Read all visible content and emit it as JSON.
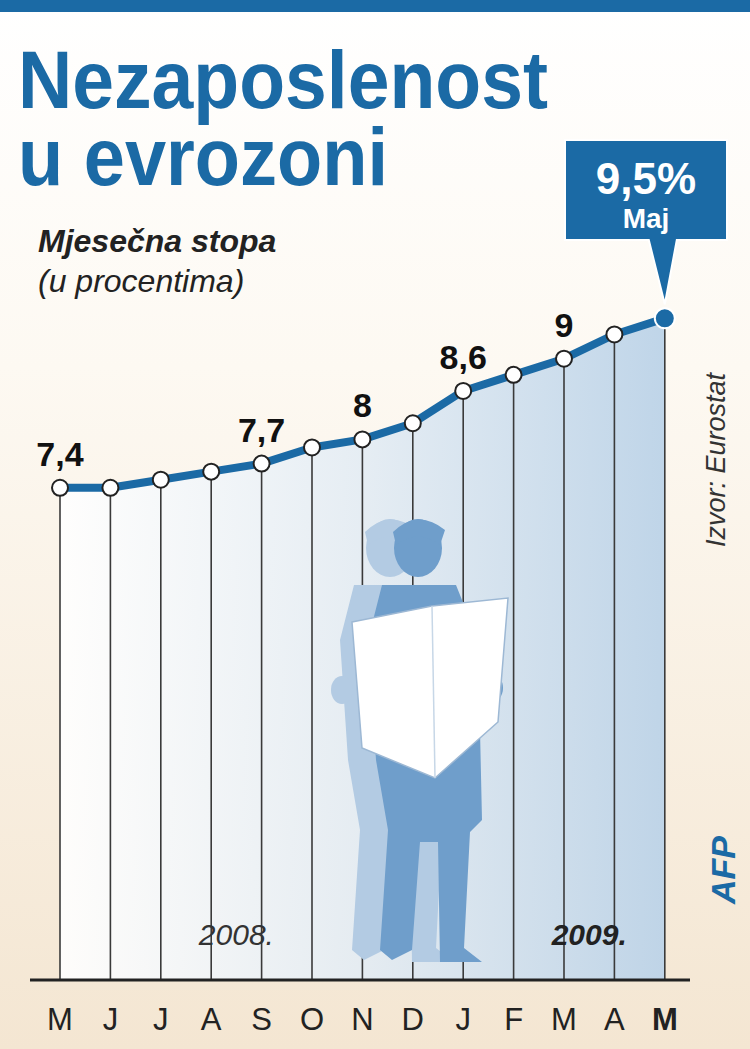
{
  "chart_data": {
    "type": "line",
    "title": [
      "Nezaposlenost",
      "u evrozoni"
    ],
    "subtitle": [
      "Mjesečna stopa",
      "(u procentima)"
    ],
    "categories": [
      "M",
      "J",
      "J",
      "A",
      "S",
      "O",
      "N",
      "D",
      "J",
      "F",
      "M",
      "A",
      "M"
    ],
    "values": [
      7.4,
      7.4,
      7.5,
      7.6,
      7.7,
      7.9,
      8.0,
      8.2,
      8.6,
      8.8,
      9.0,
      9.3,
      9.5
    ],
    "value_labels": [
      "7,4",
      null,
      null,
      null,
      "7,7",
      null,
      "8",
      null,
      "8,6",
      null,
      "9",
      null,
      "9,5%"
    ],
    "data_labels": true,
    "annotation": "Maj",
    "year_labels": [
      "2008.",
      "2009."
    ],
    "source": "Izvor:  Eurostat",
    "credit": "AFP",
    "color": "#1b6aa5",
    "marker": "circle",
    "ylim": [
      1.3,
      10
    ],
    "yticks": [],
    "tick_labels": "x",
    "grid": false
  }
}
